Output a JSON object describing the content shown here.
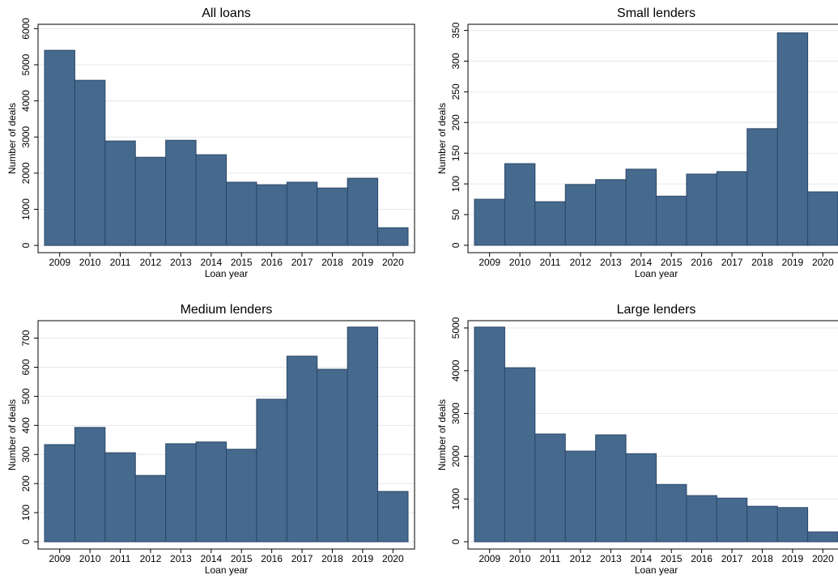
{
  "chart_data": [
    {
      "type": "bar",
      "title": "All loans",
      "x_label": "Loan year",
      "y_label": "Number of deals",
      "categories": [
        "2009",
        "2010",
        "2011",
        "2012",
        "2013",
        "2014",
        "2015",
        "2016",
        "2017",
        "2018",
        "2019",
        "2020"
      ],
      "values": [
        5400,
        4570,
        2890,
        2440,
        2910,
        2510,
        1750,
        1680,
        1750,
        1590,
        1860,
        490
      ],
      "color": "#46698e",
      "ylim": [
        -200,
        6120
      ],
      "yticks": [
        0,
        1000,
        2000,
        3000,
        4000,
        5000,
        6000
      ],
      "grid": true
    },
    {
      "type": "bar",
      "title": "Small lenders",
      "x_label": "Loan year",
      "y_label": "Number of deals",
      "categories": [
        "2009",
        "2010",
        "2011",
        "2012",
        "2013",
        "2014",
        "2015",
        "2016",
        "2017",
        "2018",
        "2019",
        "2020"
      ],
      "values": [
        75,
        133,
        71,
        99,
        107,
        124,
        80,
        116,
        120,
        190,
        346,
        87
      ],
      "color": "#46698e",
      "ylim": [
        -12,
        360
      ],
      "yticks": [
        0,
        50,
        100,
        150,
        200,
        250,
        300,
        350
      ],
      "grid": true
    },
    {
      "type": "bar",
      "title": "Medium lenders",
      "x_label": "Loan year",
      "y_label": "Number of deals",
      "categories": [
        "2009",
        "2010",
        "2011",
        "2012",
        "2013",
        "2014",
        "2015",
        "2016",
        "2017",
        "2018",
        "2019",
        "2020"
      ],
      "values": [
        334,
        393,
        306,
        228,
        337,
        343,
        318,
        490,
        638,
        593,
        738,
        173
      ],
      "color": "#46698e",
      "ylim": [
        -25,
        760
      ],
      "yticks": [
        0,
        100,
        200,
        300,
        400,
        500,
        600,
        700
      ],
      "grid": true
    },
    {
      "type": "bar",
      "title": "Large lenders",
      "x_label": "Loan year",
      "y_label": "Number of deals",
      "categories": [
        "2009",
        "2010",
        "2011",
        "2012",
        "2013",
        "2014",
        "2015",
        "2016",
        "2017",
        "2018",
        "2019",
        "2020"
      ],
      "values": [
        5020,
        4070,
        2520,
        2120,
        2500,
        2060,
        1340,
        1080,
        1020,
        830,
        800,
        230
      ],
      "color": "#46698e",
      "ylim": [
        -170,
        5170
      ],
      "yticks": [
        0,
        1000,
        2000,
        3000,
        4000,
        5000
      ],
      "grid": true
    }
  ]
}
